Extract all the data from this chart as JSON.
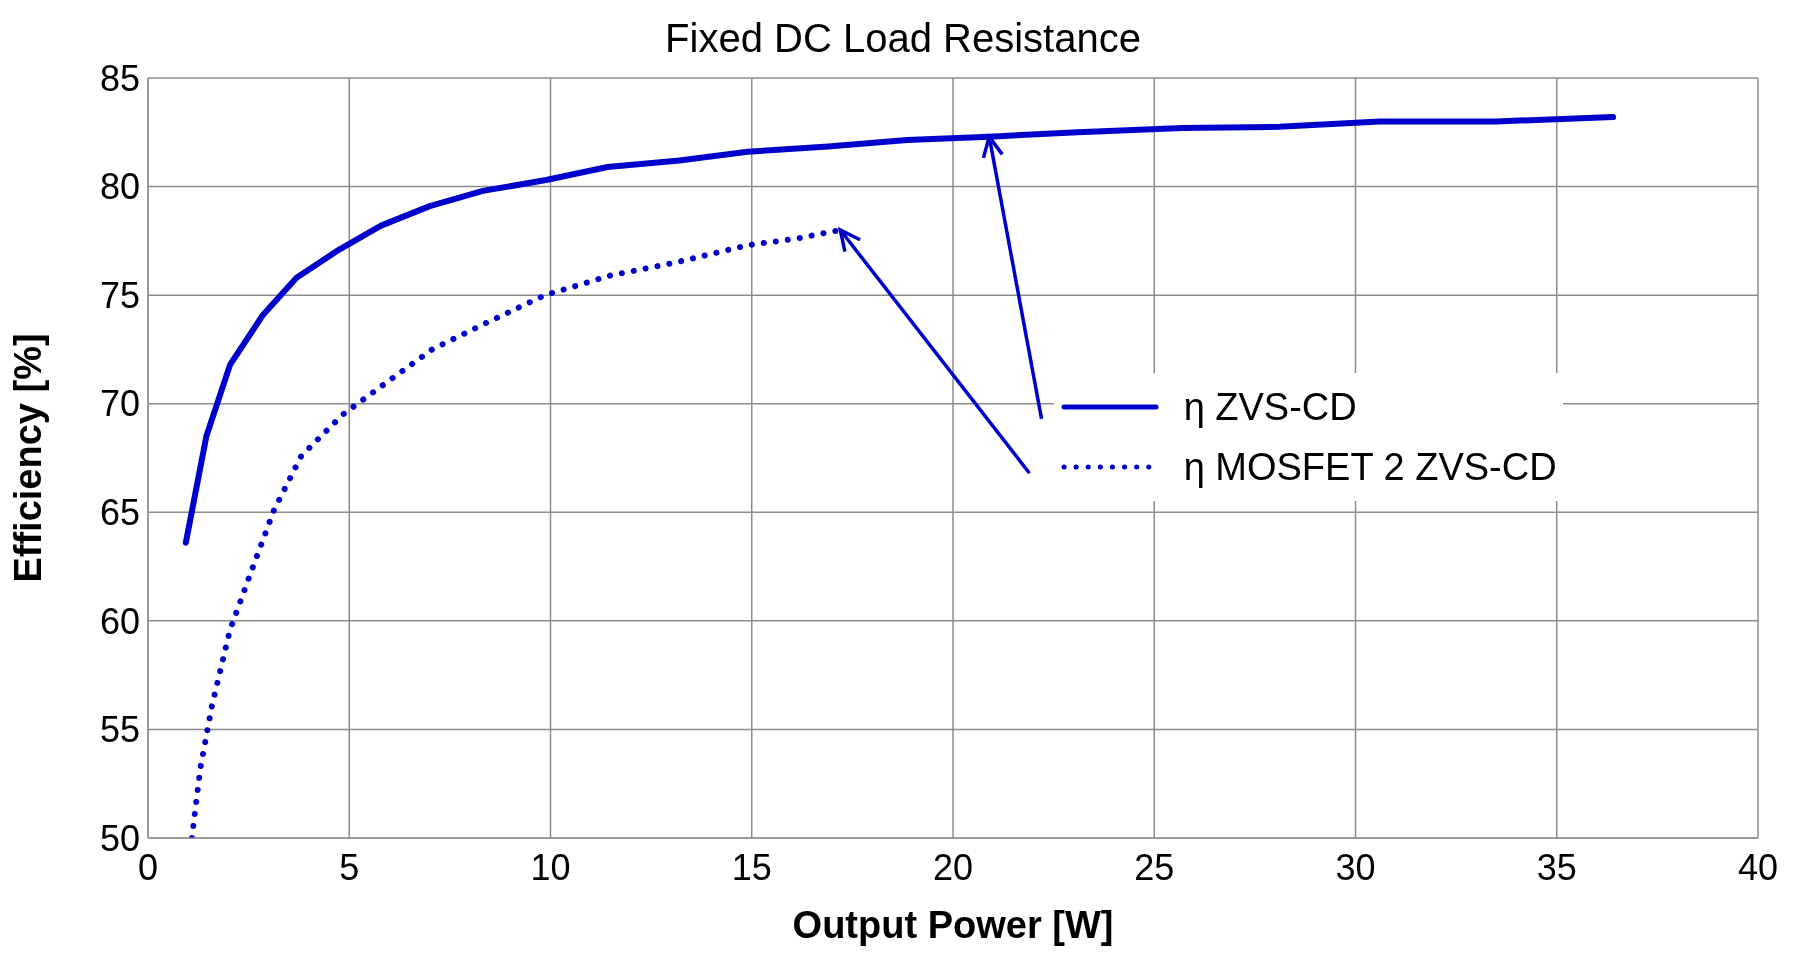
{
  "chart_data": {
    "type": "line",
    "title": "Fixed DC Load Resistance",
    "xlabel": "Output Power [W]",
    "ylabel": "Efficiency [%]",
    "xlim": [
      0,
      40
    ],
    "xticks": [
      0,
      5,
      10,
      15,
      20,
      25,
      30,
      35,
      40
    ],
    "ylim": [
      50,
      85
    ],
    "yticks": [
      50,
      55,
      60,
      65,
      70,
      75,
      80,
      85
    ],
    "grid": true,
    "legend": "right",
    "marker": "none",
    "series": [
      {
        "name": "η ZVS-CD",
        "color": "#0000cc",
        "line_style": "solid",
        "x": [
          0.94,
          1.45,
          2.04,
          2.86,
          3.69,
          4.75,
          5.79,
          7.0,
          8.32,
          9.89,
          11.42,
          13.2,
          14.9,
          16.9,
          18.86,
          20.9,
          23.1,
          25.7,
          28.1,
          30.6,
          33.5,
          36.4
        ],
        "values": [
          63.6,
          68.5,
          71.8,
          74.1,
          75.8,
          77.1,
          78.2,
          79.1,
          79.8,
          80.3,
          80.9,
          81.2,
          81.6,
          81.85,
          82.15,
          82.3,
          82.5,
          82.7,
          82.75,
          83.0,
          83.0,
          83.2
        ]
      },
      {
        "name": "η MOSFET 2 ZVS-CD",
        "color": "#0000cc",
        "line_style": "dotted",
        "x": [
          1.09,
          1.3,
          1.59,
          2.04,
          2.63,
          3.13,
          3.81,
          4.84,
          5.87,
          7.06,
          8.38,
          9.86,
          11.48,
          13.1,
          14.9,
          16.1,
          17.2
        ],
        "values": [
          50,
          53.2,
          56.1,
          59.6,
          62.6,
          65.1,
          67.6,
          69.5,
          70.9,
          72.5,
          73.7,
          75.0,
          75.9,
          76.5,
          77.3,
          77.6,
          78.0
        ]
      }
    ]
  }
}
